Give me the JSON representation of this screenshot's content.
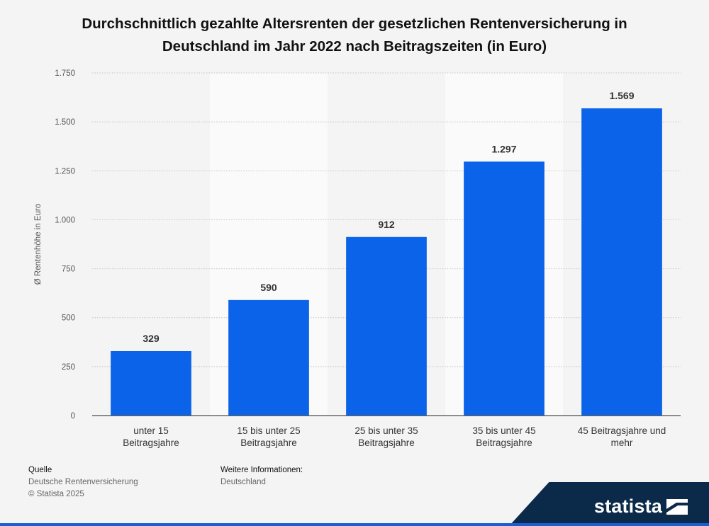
{
  "title_lines": [
    "Durchschnittlich gezahlte Altersrenten der gesetzlichen Rentenversicherung in",
    "Deutschland im Jahr 2022 nach Beitragszeiten (in Euro)"
  ],
  "chart_data": {
    "type": "bar",
    "categories": [
      [
        "unter 15",
        "Beitragsjahre"
      ],
      [
        "15 bis unter 25",
        "Beitragsjahre"
      ],
      [
        "25 bis unter 35",
        "Beitragsjahre"
      ],
      [
        "35 bis unter 45",
        "Beitragsjahre"
      ],
      [
        "45 Beitragsjahre und",
        "mehr"
      ]
    ],
    "values": [
      329,
      590,
      912,
      1297,
      1569
    ],
    "value_labels": [
      "329",
      "590",
      "912",
      "1.297",
      "1.569"
    ],
    "ylabel": "Ø Rentenhöhe in Euro",
    "ylim": [
      0,
      1750
    ],
    "yticks": [
      0,
      250,
      500,
      750,
      1000,
      1250,
      1500,
      1750
    ],
    "ytick_labels": [
      "0",
      "250",
      "500",
      "750",
      "1.000",
      "1.250",
      "1.500",
      "1.750"
    ],
    "grid": true,
    "bar_color": "#0a63e8"
  },
  "footer": {
    "source_heading": "Quelle",
    "source_lines": [
      "Deutsche Rentenversicherung",
      "© Statista 2025"
    ],
    "info_heading": "Weitere Informationen:",
    "info_lines": [
      "Deutschland"
    ]
  },
  "logo": {
    "text": "statista"
  }
}
